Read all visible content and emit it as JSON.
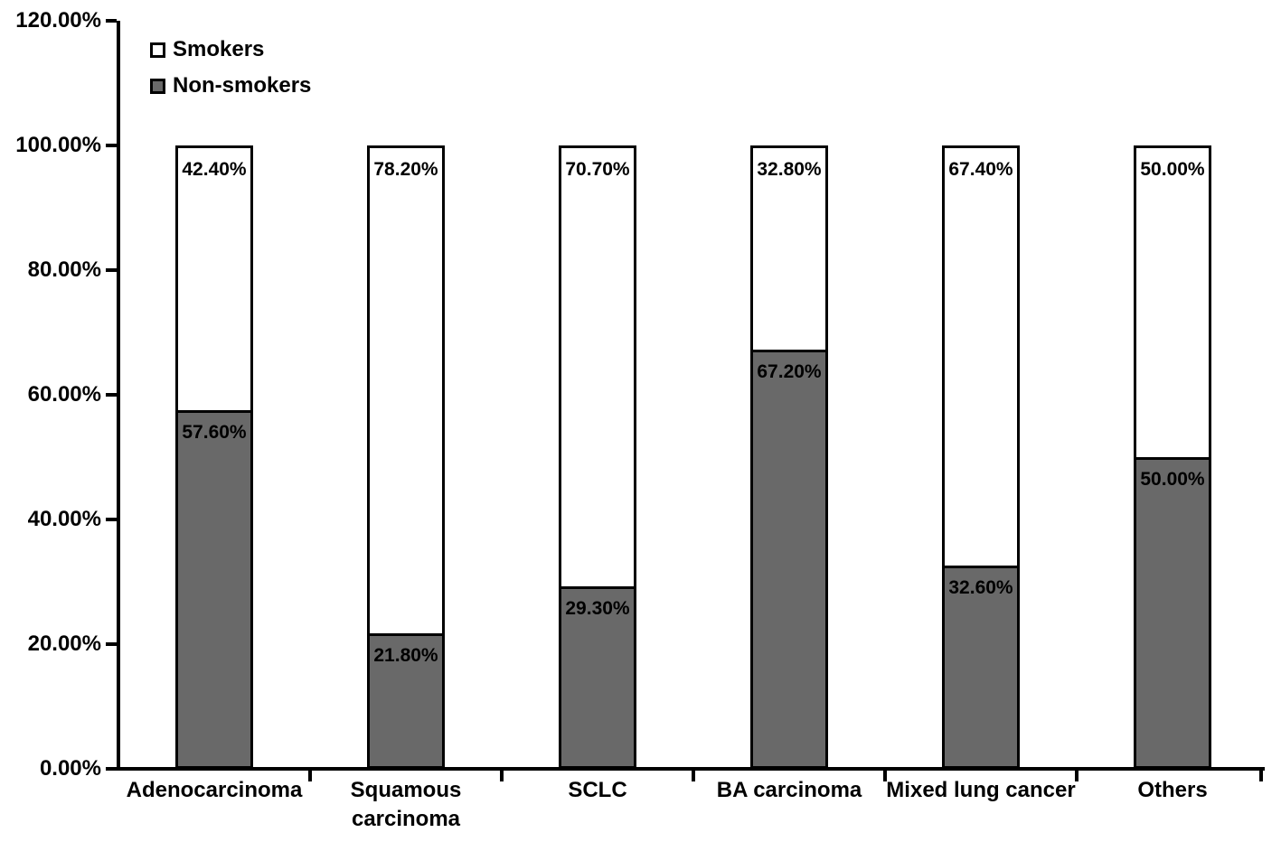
{
  "figure": {
    "background": "#ffffff",
    "text_color": "#000000"
  },
  "legend": {
    "items": [
      {
        "label": "Smokers",
        "fill": "#ffffff",
        "border": "#000000"
      },
      {
        "label": "Non-smokers",
        "fill": "#696969",
        "border": "#000000"
      }
    ]
  },
  "chart_data": {
    "type": "bar",
    "stacked": true,
    "title": "",
    "xlabel": "",
    "ylabel": "",
    "categories": [
      "Adenocarcinoma",
      "Squamous\ncarcinoma",
      "SCLC",
      "BA carcinoma",
      "Mixed lung cancer",
      "Others"
    ],
    "series": [
      {
        "name": "Smokers",
        "color": "#ffffff",
        "values": [
          42.4,
          78.2,
          70.7,
          32.8,
          67.4,
          50.0
        ],
        "labels": [
          "42.40%",
          "78.20%",
          "70.70%",
          "32.80%",
          "67.40%",
          "50.00%"
        ]
      },
      {
        "name": "Non-smokers",
        "color": "#696969",
        "values": [
          57.6,
          21.8,
          29.3,
          67.2,
          32.6,
          50.0
        ],
        "labels": [
          "57.60%",
          "21.80%",
          "29.30%",
          "67.20%",
          "32.60%",
          "50.00%"
        ]
      }
    ],
    "y_ticks": [
      {
        "value": 0,
        "label": "0.00%"
      },
      {
        "value": 20,
        "label": "20.00%"
      },
      {
        "value": 40,
        "label": "40.00%"
      },
      {
        "value": 60,
        "label": "60.00%"
      },
      {
        "value": 80,
        "label": "80.00%"
      },
      {
        "value": 100,
        "label": "100.00%"
      },
      {
        "value": 120,
        "label": "120.00%"
      }
    ],
    "ylim": [
      0,
      120
    ],
    "grid": false,
    "legend_position": "top-left-inside",
    "axis_color": "#000000",
    "bar_border_color": "#000000"
  }
}
